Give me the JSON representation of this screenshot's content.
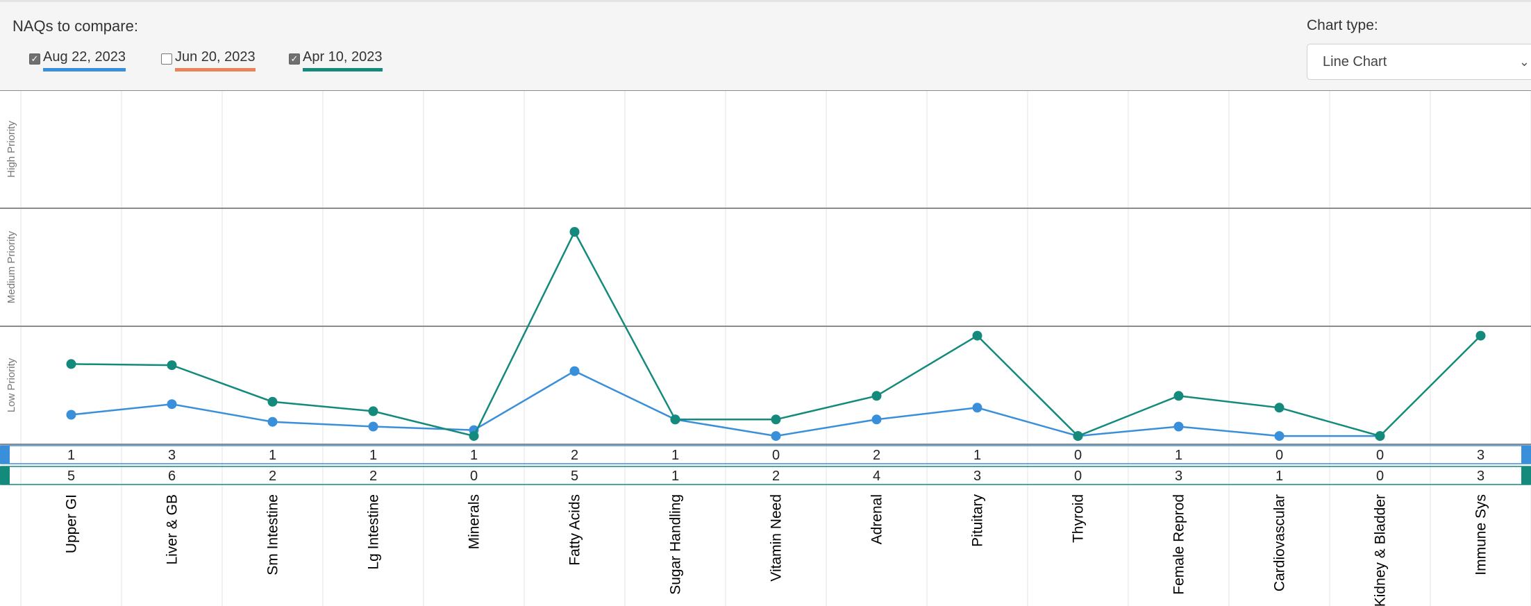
{
  "header": {
    "naq_title": "NAQs to compare:",
    "chart_type_label": "Chart type:",
    "chart_type_value": "Line Chart"
  },
  "naqs": [
    {
      "label": "Aug 22, 2023",
      "checked": true,
      "color": "#3a8fdb"
    },
    {
      "label": "Jun 20, 2023",
      "checked": false,
      "color": "#e8845c"
    },
    {
      "label": "Apr 10, 2023",
      "checked": true,
      "color": "#138a7b"
    }
  ],
  "chart_data": {
    "type": "line",
    "categories": [
      "Upper GI",
      "Liver & GB",
      "Sm Intestine",
      "Lg Intestine",
      "Minerals",
      "Fatty Acids",
      "Sugar Handling",
      "Vitamin Need",
      "Adrenal",
      "Pituitary",
      "Thyroid",
      "Female Reprod",
      "Cardiovascular",
      "Kidney & Bladder",
      "Immune Sys"
    ],
    "bands": [
      "High Priority",
      "Medium Priority",
      "Low Priority"
    ],
    "series": [
      {
        "color": "#3a8fdb",
        "values": [
          1,
          3,
          1,
          1,
          1,
          2,
          1,
          0,
          2,
          1,
          0,
          1,
          0,
          0,
          3
        ],
        "plotted": [
          0.25,
          0.34,
          0.19,
          0.15,
          0.12,
          0.62,
          0.21,
          0.07,
          0.21,
          0.31,
          0.07,
          0.15,
          0.07,
          0.07,
          null
        ]
      },
      {
        "color": "#138a7b",
        "values": [
          5,
          6,
          2,
          2,
          0,
          5,
          1,
          2,
          4,
          3,
          0,
          3,
          1,
          0,
          3
        ],
        "plotted": [
          0.68,
          0.67,
          0.36,
          0.28,
          0.07,
          1.8,
          0.21,
          0.21,
          0.41,
          0.92,
          0.07,
          0.41,
          0.31,
          0.07,
          0.92
        ]
      }
    ]
  }
}
